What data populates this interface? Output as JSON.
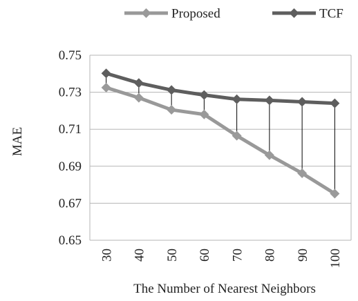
{
  "chart_data": {
    "type": "line",
    "categories": [
      "30",
      "40",
      "50",
      "60",
      "70",
      "80",
      "90",
      "100"
    ],
    "series": [
      {
        "name": "Proposed",
        "values": [
          0.7325,
          0.727,
          0.7205,
          0.718,
          0.7065,
          0.696,
          0.6862,
          0.6752
        ],
        "color": "#999999",
        "marker_color": "#9a9a9a"
      },
      {
        "name": "TCF",
        "values": [
          0.7402,
          0.735,
          0.7312,
          0.7285,
          0.7262,
          0.7256,
          0.7248,
          0.724
        ],
        "color": "#5e5e5e",
        "marker_color": "#5e5e5e"
      }
    ],
    "xlabel": "The Number of Nearest Neighbors",
    "ylabel": "MAE",
    "ylim": [
      0.65,
      0.75
    ],
    "yticks": [
      "0.65",
      "0.67",
      "0.69",
      "0.71",
      "0.73",
      "0.75"
    ],
    "grid": "horizontal",
    "legend_position": "top",
    "drop_lines": true,
    "marker": "diamond"
  }
}
